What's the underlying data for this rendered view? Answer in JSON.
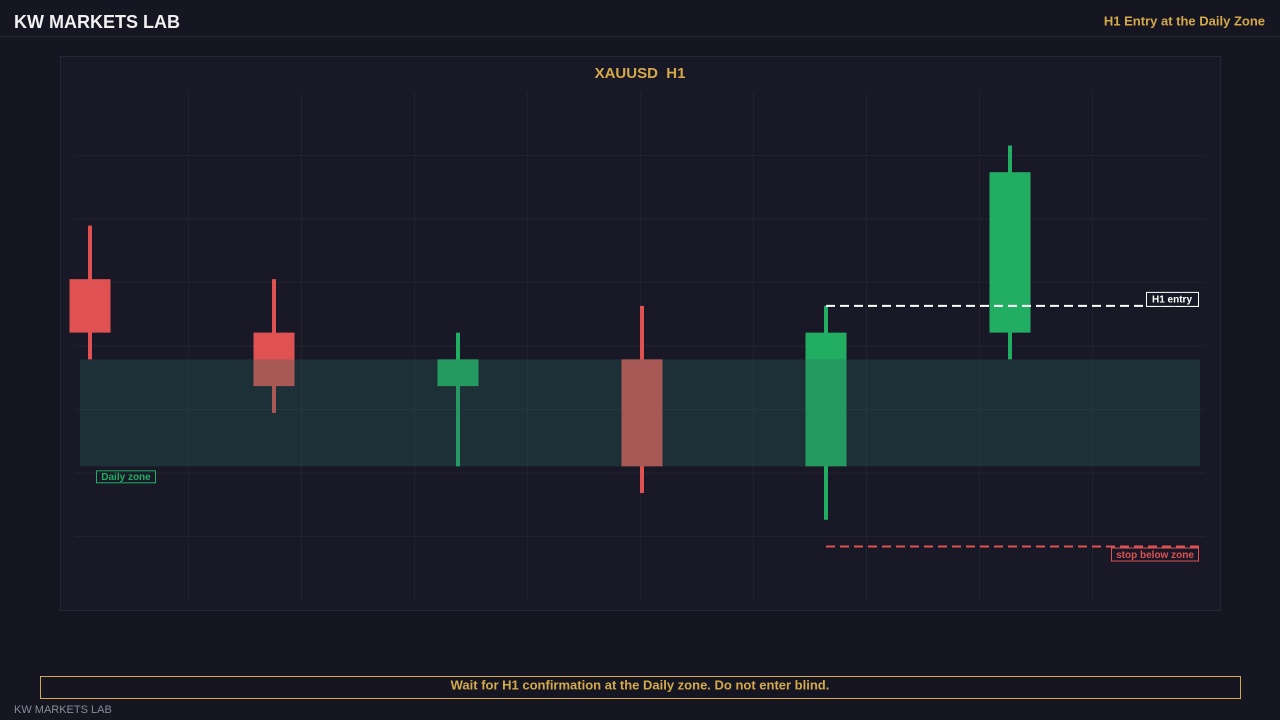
{
  "header": {
    "title": "KW MARKETS LAB",
    "subtitle": "H1 Entry at the Daily Zone"
  },
  "chart_data": {
    "type": "candlestick",
    "title": "XAUUSD  H1",
    "open": [
      7,
      5,
      3,
      4,
      0,
      5
    ],
    "high": [
      9,
      7,
      5,
      6,
      6,
      12
    ],
    "low": [
      4,
      2,
      0,
      -1,
      -2,
      4
    ],
    "close": [
      5,
      3,
      4,
      0,
      5,
      11
    ],
    "up_color": "#22ae62",
    "down_color": "#e05252",
    "ylim": [
      -5,
      14
    ],
    "zone": {
      "label": "Daily zone",
      "range": [
        0,
        4
      ],
      "color": "#2a6b5c"
    },
    "entry": {
      "label": "H1 entry",
      "value": 6,
      "color": "#ffffff"
    },
    "stop": {
      "label": "stop below zone",
      "value": -3,
      "color": "#e05252"
    }
  },
  "footer": {
    "note": "Wait for H1 confirmation at the Daily zone. Do not enter blind.",
    "brand": "KW MARKETS LAB"
  }
}
